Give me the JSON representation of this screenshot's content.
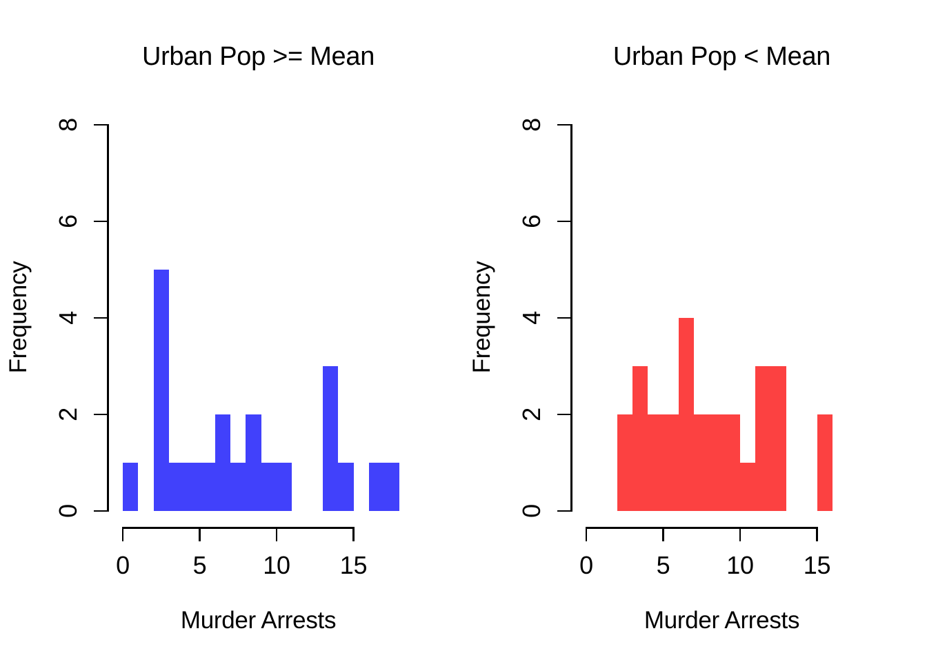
{
  "figure": {
    "background": "#FFFFFF",
    "text_color": "#000000"
  },
  "chart_data": [
    {
      "type": "bar",
      "subtype": "histogram",
      "title": "Urban Pop >= Mean",
      "xlabel": "Murder Arrests",
      "ylabel": "Frequency",
      "bar_color": "#4141FB",
      "xlim": [
        0,
        18
      ],
      "ylim": [
        0,
        8
      ],
      "x_ticks": [
        0,
        5,
        10,
        15
      ],
      "y_ticks": [
        0,
        2,
        4,
        6,
        8
      ],
      "bin_breaks": [
        0,
        1,
        2,
        3,
        4,
        5,
        6,
        7,
        8,
        9,
        10,
        11,
        12,
        13,
        14,
        15,
        16,
        17,
        18
      ],
      "counts": [
        1,
        0,
        5,
        1,
        1,
        1,
        2,
        1,
        2,
        1,
        1,
        0,
        0,
        3,
        1,
        0,
        1,
        1
      ],
      "grid": false,
      "legend": "none"
    },
    {
      "type": "bar",
      "subtype": "histogram",
      "title": "Urban Pop < Mean",
      "xlabel": "Murder Arrests",
      "ylabel": "Frequency",
      "bar_color": "#FC4141",
      "xlim": [
        0,
        16
      ],
      "ylim": [
        0,
        8
      ],
      "x_ticks": [
        0,
        5,
        10,
        15
      ],
      "y_ticks": [
        0,
        2,
        4,
        6,
        8
      ],
      "bin_breaks": [
        0,
        1,
        2,
        3,
        4,
        5,
        6,
        7,
        8,
        9,
        10,
        11,
        12,
        13,
        14,
        15,
        16
      ],
      "counts": [
        0,
        0,
        2,
        3,
        2,
        2,
        4,
        2,
        2,
        2,
        1,
        3,
        3,
        0,
        0,
        2
      ],
      "grid": false,
      "legend": "none"
    }
  ]
}
